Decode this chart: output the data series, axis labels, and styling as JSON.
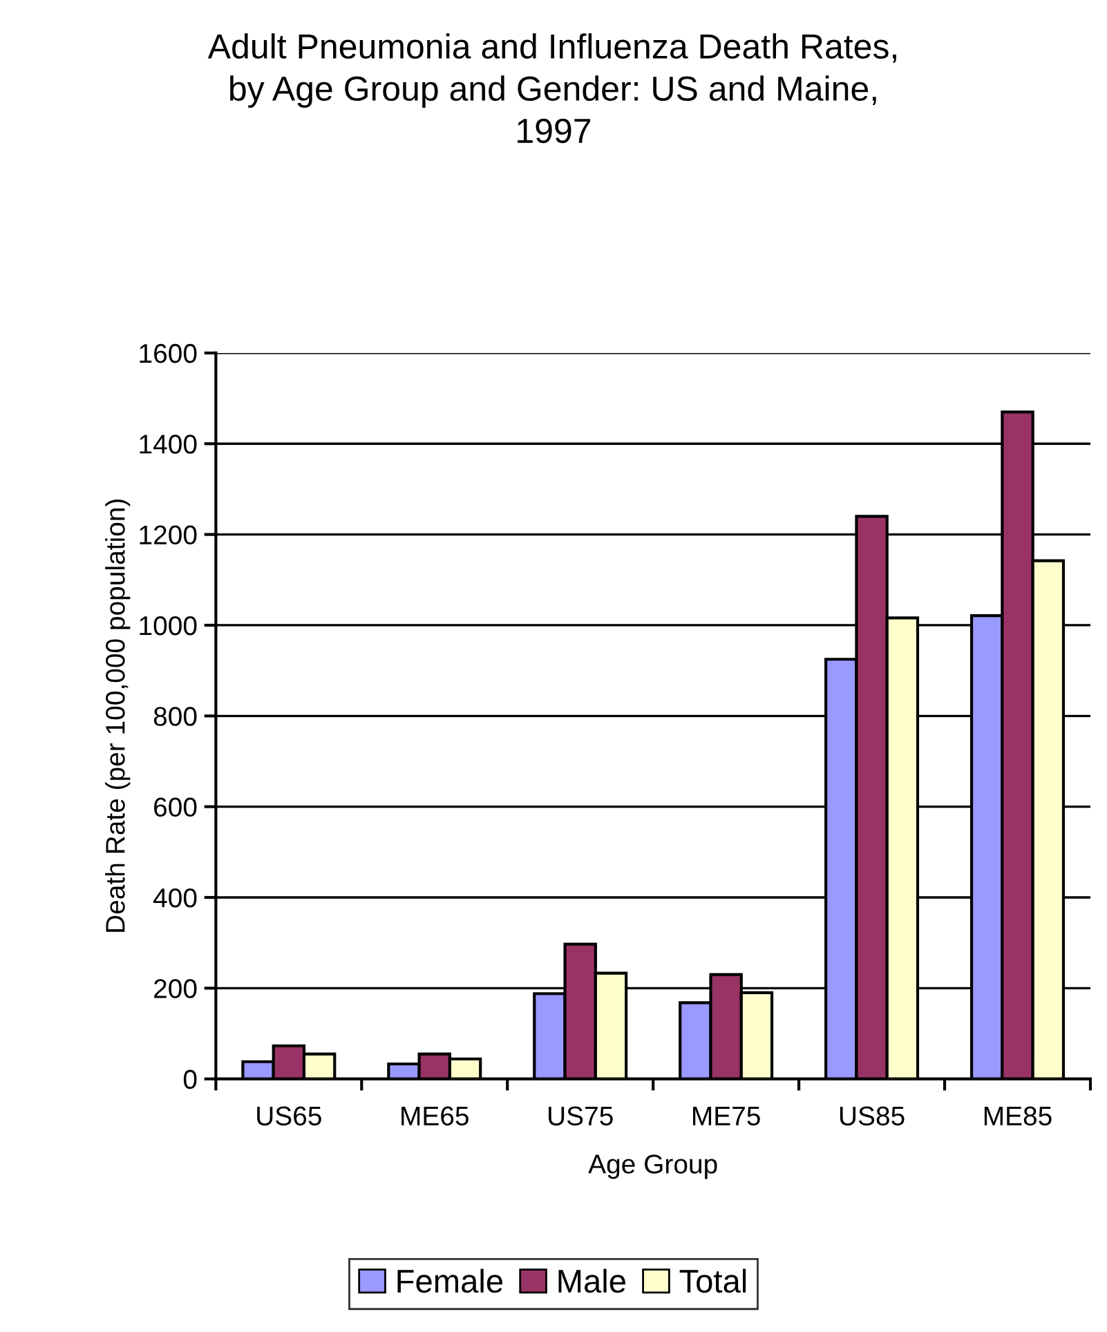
{
  "chart_data": {
    "type": "bar",
    "title": "Adult Pneumonia and Influenza Death Rates,\nby Age Group and Gender: US and Maine,\n1997",
    "xlabel": "Age Group",
    "ylabel": "Death Rate (per 100,000 population)",
    "categories": [
      "US65",
      "ME65",
      "US75",
      "ME75",
      "US85",
      "ME85"
    ],
    "series": [
      {
        "name": "Female",
        "color": "#9999ff",
        "values": [
          38,
          33,
          188,
          168,
          925,
          1021
        ]
      },
      {
        "name": "Male",
        "color": "#993366",
        "values": [
          73,
          55,
          297,
          230,
          1240,
          1470
        ]
      },
      {
        "name": "Total",
        "color": "#ffffcc",
        "values": [
          55,
          44,
          233,
          190,
          1016,
          1142
        ]
      }
    ],
    "ylim": [
      0,
      1600
    ],
    "yticks": [
      0,
      200,
      400,
      600,
      800,
      1000,
      1200,
      1400,
      1600
    ],
    "grid": "y",
    "legend": "bottom"
  }
}
